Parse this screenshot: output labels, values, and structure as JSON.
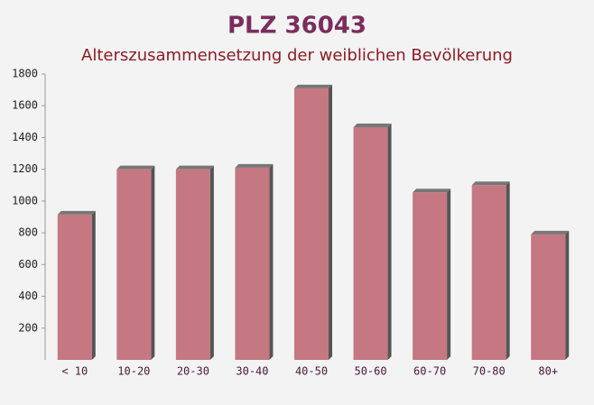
{
  "chart_data": {
    "type": "bar",
    "title": "PLZ 36043",
    "subtitle": "Alterszusammensetzung der weiblichen Bevölkerung",
    "categories": [
      "< 10",
      "10-20",
      "20-30",
      "30-40",
      "40-50",
      "50-60",
      "60-70",
      "70-80",
      "80+"
    ],
    "values": [
      915,
      1200,
      1200,
      1210,
      1710,
      1465,
      1055,
      1100,
      790
    ],
    "color": "#c06a74",
    "ylim": [
      0,
      1800
    ],
    "yticks": [
      200,
      400,
      600,
      800,
      1000,
      1200,
      1400,
      1600,
      1800
    ]
  }
}
